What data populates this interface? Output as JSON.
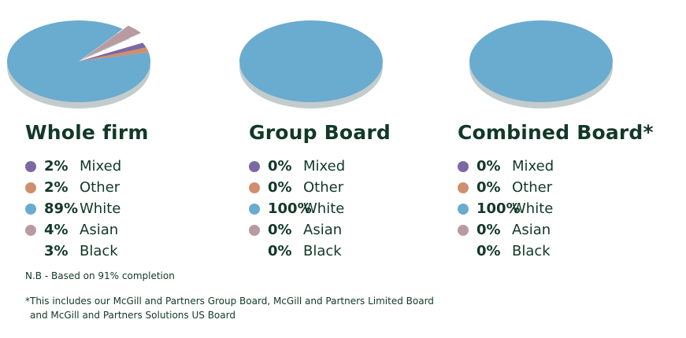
{
  "chart_data": [
    {
      "type": "pie",
      "title": "Whole firm",
      "categories": [
        "Mixed",
        "Other",
        "White",
        "Asian",
        "Black"
      ],
      "values": [
        2,
        2,
        89,
        4,
        3
      ],
      "value_labels": [
        "2%",
        "2%",
        "89%",
        "4%",
        "3%"
      ],
      "colors": [
        "#7b68a5",
        "#cf8f6e",
        "#6aabd0",
        "#b89ba0",
        "#ffffff"
      ],
      "legend": "below"
    },
    {
      "type": "pie",
      "title": "Group Board",
      "categories": [
        "Mixed",
        "Other",
        "White",
        "Asian",
        "Black"
      ],
      "values": [
        0,
        0,
        100,
        0,
        0
      ],
      "value_labels": [
        "0%",
        "0%",
        "100%",
        "0%",
        "0%"
      ],
      "colors": [
        "#7b68a5",
        "#cf8f6e",
        "#6aabd0",
        "#b89ba0",
        "#ffffff"
      ],
      "legend": "below"
    },
    {
      "type": "pie",
      "title": "Combined Board*",
      "categories": [
        "Mixed",
        "Other",
        "White",
        "Asian",
        "Black"
      ],
      "values": [
        0,
        0,
        100,
        0,
        0
      ],
      "value_labels": [
        "0%",
        "0%",
        "100%",
        "0%",
        "0%"
      ],
      "colors": [
        "#7b68a5",
        "#cf8f6e",
        "#6aabd0",
        "#b89ba0",
        "#ffffff"
      ],
      "legend": "below"
    }
  ],
  "notes": {
    "completion": "N.B - Based on 91% completion",
    "footnote_line1": "*This includes our McGill and Partners Group Board, McGill and Partners Limited Board",
    "footnote_line2": "and McGill and Partners Solutions US Board"
  },
  "colors": {
    "text": "#123828",
    "pie_side": "#c2cccc"
  }
}
